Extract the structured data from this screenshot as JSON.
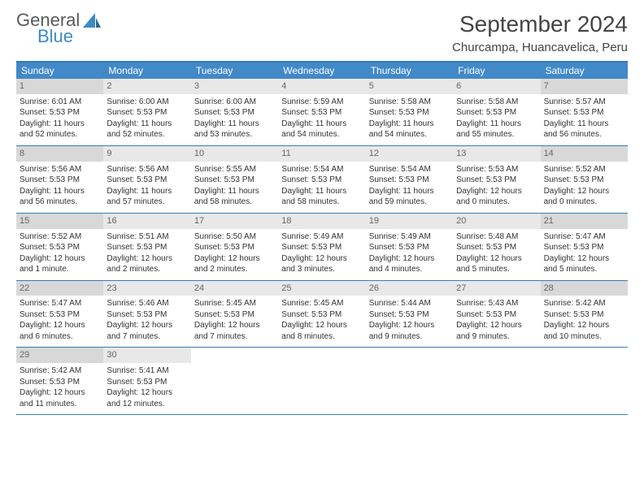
{
  "logo": {
    "general": "General",
    "blue": "Blue"
  },
  "title": "September 2024",
  "location": "Churcampa, Huancavelica, Peru",
  "colors": {
    "header_bg": "#4289c8",
    "border": "#3b7bb5",
    "daynum_bg": "#e8e8e8",
    "daynum_shaded": "#d8d8d8",
    "logo_gray": "#5a5a5a",
    "logo_blue": "#3b8bc4"
  },
  "dayNames": [
    "Sunday",
    "Monday",
    "Tuesday",
    "Wednesday",
    "Thursday",
    "Friday",
    "Saturday"
  ],
  "weeks": [
    [
      {
        "n": "1",
        "shaded": true,
        "sr": "6:01 AM",
        "ss": "5:53 PM",
        "d1": "11 hours",
        "d2": "and 52 minutes."
      },
      {
        "n": "2",
        "sr": "6:00 AM",
        "ss": "5:53 PM",
        "d1": "11 hours",
        "d2": "and 52 minutes."
      },
      {
        "n": "3",
        "sr": "6:00 AM",
        "ss": "5:53 PM",
        "d1": "11 hours",
        "d2": "and 53 minutes."
      },
      {
        "n": "4",
        "sr": "5:59 AM",
        "ss": "5:53 PM",
        "d1": "11 hours",
        "d2": "and 54 minutes."
      },
      {
        "n": "5",
        "sr": "5:58 AM",
        "ss": "5:53 PM",
        "d1": "11 hours",
        "d2": "and 54 minutes."
      },
      {
        "n": "6",
        "sr": "5:58 AM",
        "ss": "5:53 PM",
        "d1": "11 hours",
        "d2": "and 55 minutes."
      },
      {
        "n": "7",
        "shaded": true,
        "sr": "5:57 AM",
        "ss": "5:53 PM",
        "d1": "11 hours",
        "d2": "and 56 minutes."
      }
    ],
    [
      {
        "n": "8",
        "shaded": true,
        "sr": "5:56 AM",
        "ss": "5:53 PM",
        "d1": "11 hours",
        "d2": "and 56 minutes."
      },
      {
        "n": "9",
        "sr": "5:56 AM",
        "ss": "5:53 PM",
        "d1": "11 hours",
        "d2": "and 57 minutes."
      },
      {
        "n": "10",
        "sr": "5:55 AM",
        "ss": "5:53 PM",
        "d1": "11 hours",
        "d2": "and 58 minutes."
      },
      {
        "n": "11",
        "sr": "5:54 AM",
        "ss": "5:53 PM",
        "d1": "11 hours",
        "d2": "and 58 minutes."
      },
      {
        "n": "12",
        "sr": "5:54 AM",
        "ss": "5:53 PM",
        "d1": "11 hours",
        "d2": "and 59 minutes."
      },
      {
        "n": "13",
        "sr": "5:53 AM",
        "ss": "5:53 PM",
        "d1": "12 hours",
        "d2": "and 0 minutes."
      },
      {
        "n": "14",
        "shaded": true,
        "sr": "5:52 AM",
        "ss": "5:53 PM",
        "d1": "12 hours",
        "d2": "and 0 minutes."
      }
    ],
    [
      {
        "n": "15",
        "shaded": true,
        "sr": "5:52 AM",
        "ss": "5:53 PM",
        "d1": "12 hours",
        "d2": "and 1 minute."
      },
      {
        "n": "16",
        "sr": "5:51 AM",
        "ss": "5:53 PM",
        "d1": "12 hours",
        "d2": "and 2 minutes."
      },
      {
        "n": "17",
        "sr": "5:50 AM",
        "ss": "5:53 PM",
        "d1": "12 hours",
        "d2": "and 2 minutes."
      },
      {
        "n": "18",
        "sr": "5:49 AM",
        "ss": "5:53 PM",
        "d1": "12 hours",
        "d2": "and 3 minutes."
      },
      {
        "n": "19",
        "sr": "5:49 AM",
        "ss": "5:53 PM",
        "d1": "12 hours",
        "d2": "and 4 minutes."
      },
      {
        "n": "20",
        "sr": "5:48 AM",
        "ss": "5:53 PM",
        "d1": "12 hours",
        "d2": "and 5 minutes."
      },
      {
        "n": "21",
        "shaded": true,
        "sr": "5:47 AM",
        "ss": "5:53 PM",
        "d1": "12 hours",
        "d2": "and 5 minutes."
      }
    ],
    [
      {
        "n": "22",
        "shaded": true,
        "sr": "5:47 AM",
        "ss": "5:53 PM",
        "d1": "12 hours",
        "d2": "and 6 minutes."
      },
      {
        "n": "23",
        "sr": "5:46 AM",
        "ss": "5:53 PM",
        "d1": "12 hours",
        "d2": "and 7 minutes."
      },
      {
        "n": "24",
        "sr": "5:45 AM",
        "ss": "5:53 PM",
        "d1": "12 hours",
        "d2": "and 7 minutes."
      },
      {
        "n": "25",
        "sr": "5:45 AM",
        "ss": "5:53 PM",
        "d1": "12 hours",
        "d2": "and 8 minutes."
      },
      {
        "n": "26",
        "sr": "5:44 AM",
        "ss": "5:53 PM",
        "d1": "12 hours",
        "d2": "and 9 minutes."
      },
      {
        "n": "27",
        "sr": "5:43 AM",
        "ss": "5:53 PM",
        "d1": "12 hours",
        "d2": "and 9 minutes."
      },
      {
        "n": "28",
        "shaded": true,
        "sr": "5:42 AM",
        "ss": "5:53 PM",
        "d1": "12 hours",
        "d2": "and 10 minutes."
      }
    ],
    [
      {
        "n": "29",
        "shaded": true,
        "sr": "5:42 AM",
        "ss": "5:53 PM",
        "d1": "12 hours",
        "d2": "and 11 minutes."
      },
      {
        "n": "30",
        "sr": "5:41 AM",
        "ss": "5:53 PM",
        "d1": "12 hours",
        "d2": "and 12 minutes."
      },
      null,
      null,
      null,
      null,
      null
    ]
  ],
  "labels": {
    "sunrise": "Sunrise:",
    "sunset": "Sunset:",
    "daylight": "Daylight:"
  }
}
